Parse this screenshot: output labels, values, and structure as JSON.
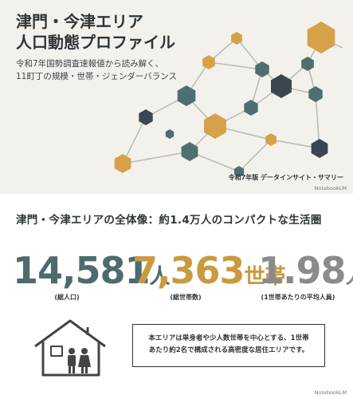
{
  "header": {
    "title_lines": [
      "津門・今津エリア",
      "人口動態プロファイル"
    ],
    "subtitle_lines": [
      "令和7年国勢調査速報値から読み解く、",
      "11町丁の規模・世帯・ジェンダーバランス"
    ],
    "badge": "令和7年版 データインサイト・サマリー",
    "watermark": "NotebookLM"
  },
  "section": {
    "heading": "津門・今津エリアの全体像：約1.4万人のコンパクトな生活圏",
    "stats": [
      {
        "value": "14,581",
        "unit": "人",
        "label": "(総人口)"
      },
      {
        "value": "7,363",
        "unit": "世帯",
        "label": "(総世帯数)"
      },
      {
        "value": "1.98",
        "unit": "人",
        "label": "(1世帯あたりの平均人員)"
      }
    ],
    "note_lines": [
      "本エリアは単身者や少人数世帯を中心とする、1世帯",
      "あたり約2名で構成される高密度な居住エリアです。"
    ],
    "watermark": "NotebookLM"
  }
}
